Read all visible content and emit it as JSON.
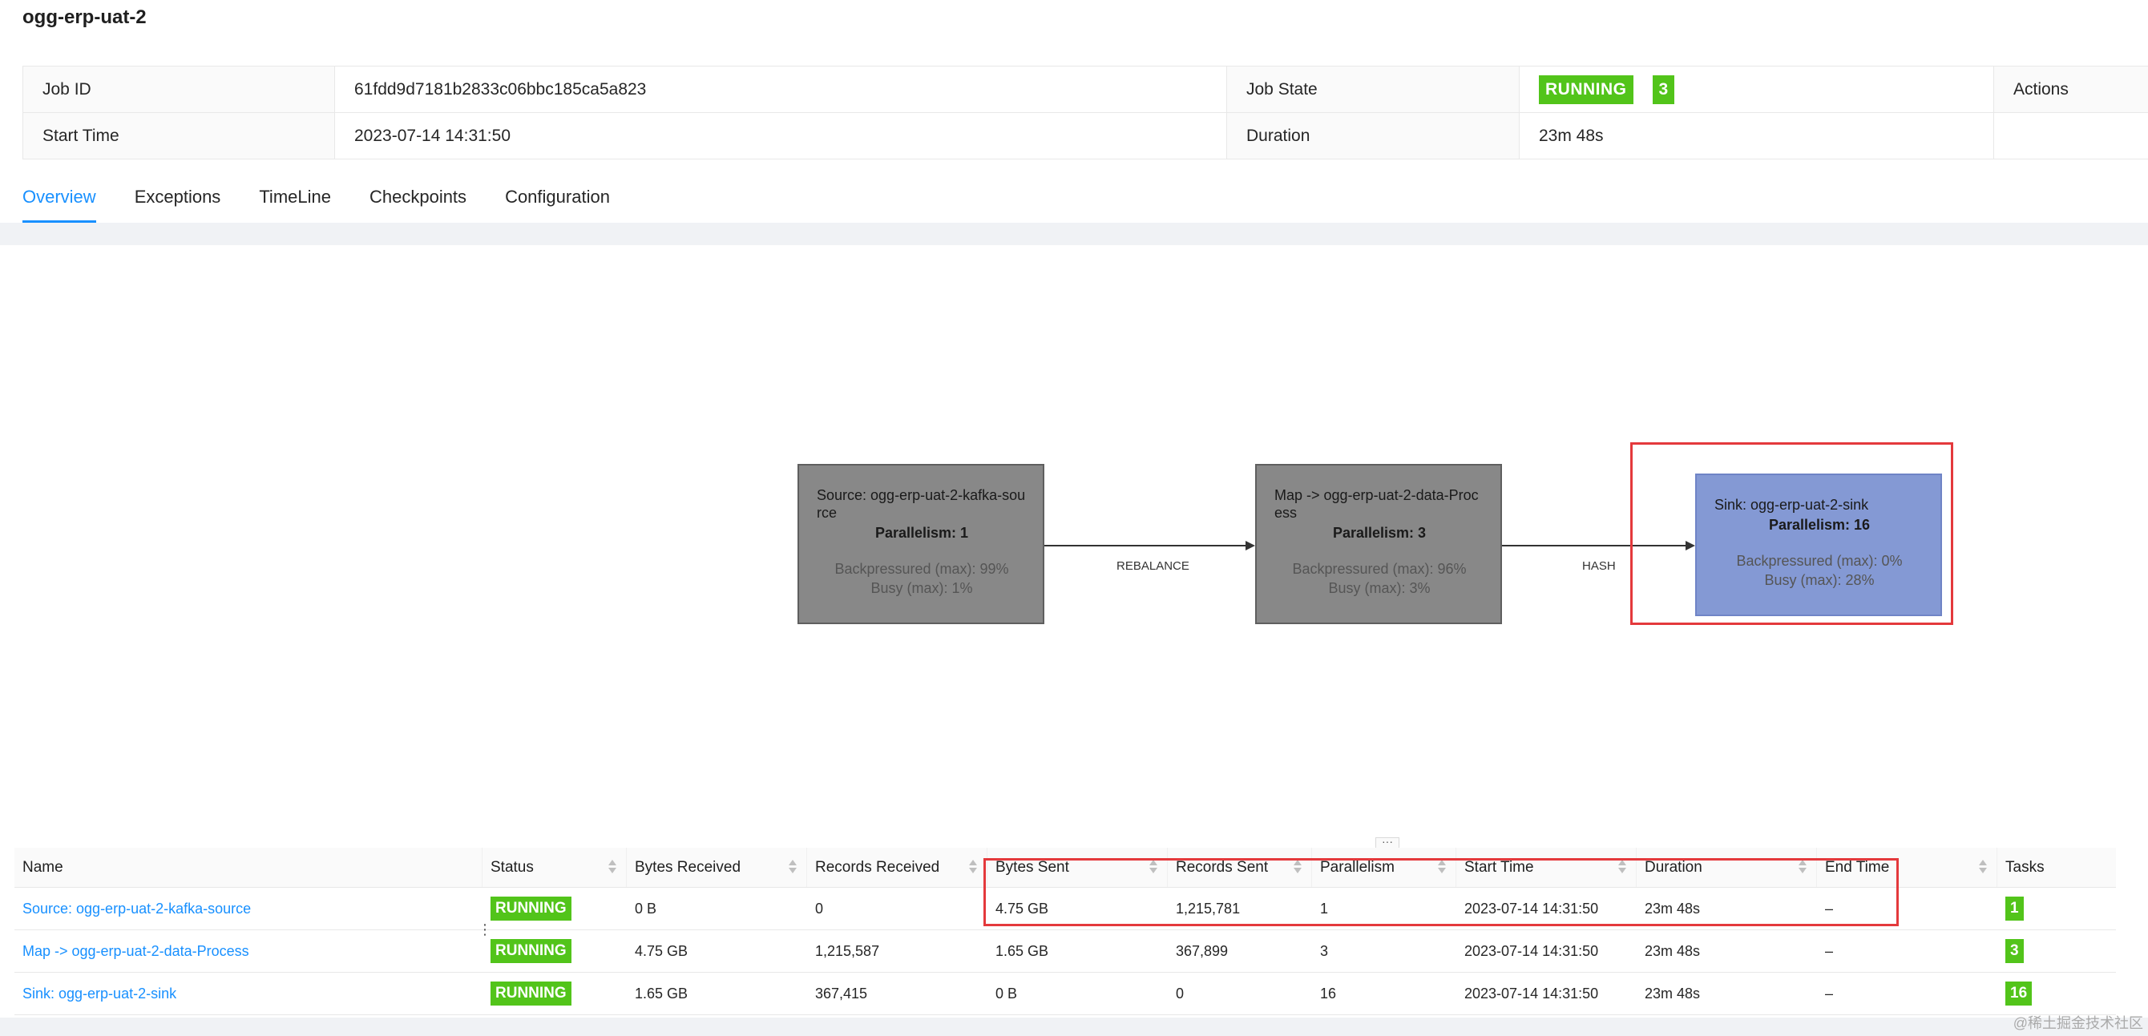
{
  "job": {
    "title": "ogg-erp-uat-2",
    "job_id_label": "Job ID",
    "job_id": "61fdd9d7181b2833c06bbc185ca5a823",
    "job_state_label": "Job State",
    "job_state": "RUNNING",
    "job_state_count": "3",
    "actions_label": "Actions",
    "start_time_label": "Start Time",
    "start_time": "2023-07-14 14:31:50",
    "duration_label": "Duration",
    "duration": "23m 48s"
  },
  "tabs": [
    {
      "label": "Overview",
      "active": true
    },
    {
      "label": "Exceptions"
    },
    {
      "label": "TimeLine"
    },
    {
      "label": "Checkpoints"
    },
    {
      "label": "Configuration"
    }
  ],
  "graph": {
    "nodes": [
      {
        "name": "Source: ogg-erp-uat-2-kafka-source",
        "parallelism": "Parallelism: 1",
        "backpressured": "Backpressured (max): 99%",
        "busy": "Busy (max): 1%"
      },
      {
        "name": "Map -> ogg-erp-uat-2-data-Process",
        "parallelism": "Parallelism: 3",
        "backpressured": "Backpressured (max): 96%",
        "busy": "Busy (max): 3%"
      },
      {
        "name": "Sink: ogg-erp-uat-2-sink",
        "parallelism": "Parallelism: 16",
        "backpressured": "Backpressured (max): 0%",
        "busy": "Busy (max): 28%"
      }
    ],
    "edges": [
      {
        "label": "REBALANCE"
      },
      {
        "label": "HASH"
      }
    ],
    "resize_handle": "···"
  },
  "table": {
    "headers": {
      "name": "Name",
      "status": "Status",
      "bytes_received": "Bytes Received",
      "records_received": "Records Received",
      "bytes_sent": "Bytes Sent",
      "records_sent": "Records Sent",
      "parallelism": "Parallelism",
      "start_time": "Start Time",
      "duration": "Duration",
      "end_time": "End Time",
      "tasks": "Tasks"
    },
    "rows": [
      {
        "name": "Source: ogg-erp-uat-2-kafka-source",
        "status": "RUNNING",
        "bytes_received": "0 B",
        "records_received": "0",
        "bytes_sent": "4.75 GB",
        "records_sent": "1,215,781",
        "parallelism": "1",
        "start_time": "2023-07-14 14:31:50",
        "duration": "23m 48s",
        "end_time": "–",
        "tasks": "1"
      },
      {
        "name": "Map -> ogg-erp-uat-2-data-Process",
        "status": "RUNNING",
        "bytes_received": "4.75 GB",
        "records_received": "1,215,587",
        "bytes_sent": "1.65 GB",
        "records_sent": "367,899",
        "parallelism": "3",
        "start_time": "2023-07-14 14:31:50",
        "duration": "23m 48s",
        "end_time": "–",
        "tasks": "3"
      },
      {
        "name": "Sink: ogg-erp-uat-2-sink",
        "status": "RUNNING",
        "bytes_received": "1.65 GB",
        "records_received": "367,415",
        "bytes_sent": "0 B",
        "records_sent": "0",
        "parallelism": "16",
        "start_time": "2023-07-14 14:31:50",
        "duration": "23m 48s",
        "end_time": "–",
        "tasks": "16"
      }
    ],
    "row_handle": "⋮"
  },
  "watermark": "@稀土掘金技术社区",
  "colors": {
    "accent": "#1890ff",
    "running": "#52c41a",
    "operator_node": "#888888",
    "sink_node": "#8499d4",
    "highlight": "#e4393c"
  }
}
